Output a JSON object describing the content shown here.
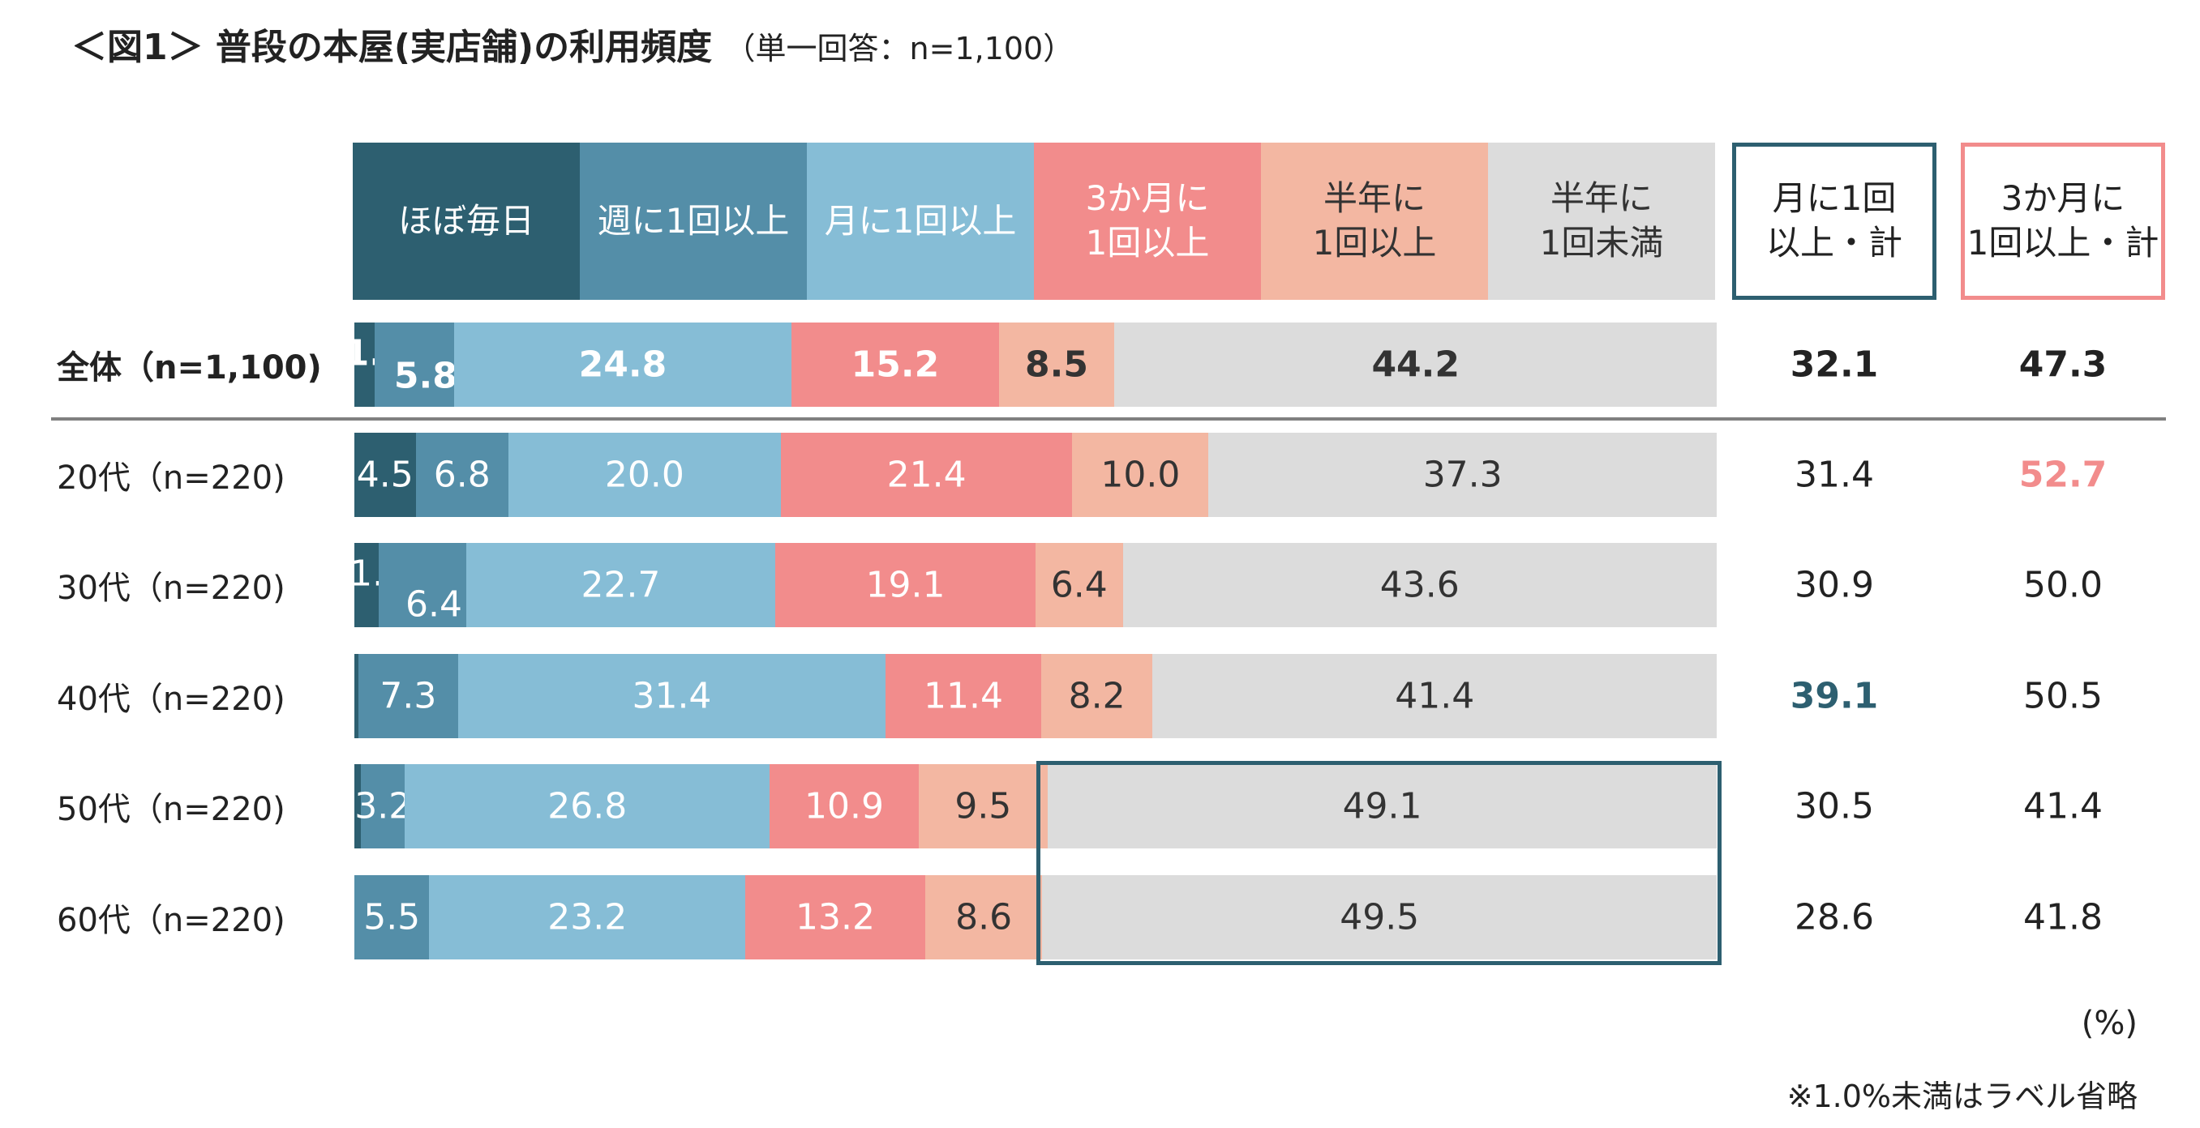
{
  "title": {
    "main": "＜図1＞ 普段の本屋(実店舗)の利用頻度",
    "sub": "（単一回答：n=1,100）"
  },
  "chart_data": {
    "type": "bar",
    "orientation": "horizontal-stacked-100",
    "categories": [
      "全体（n=1,100)",
      "20代（n=220)",
      "30代（n=220)",
      "40代（n=220)",
      "50代（n=220)",
      "60代（n=220)"
    ],
    "series": [
      {
        "name": "ほぼ毎日",
        "color": "#2d5f70",
        "values": [
          1.5,
          4.5,
          1.8,
          0.3,
          0.5,
          0
        ]
      },
      {
        "name": "週に1回以上",
        "color": "#548ea8",
        "values": [
          5.8,
          6.8,
          6.4,
          7.3,
          3.2,
          5.5
        ]
      },
      {
        "name": "月に1回以上",
        "color": "#86bdd6",
        "values": [
          24.8,
          20.0,
          22.7,
          31.4,
          26.8,
          23.2
        ]
      },
      {
        "name": "3か月に\n1回以上",
        "color": "#f28c8c",
        "values": [
          15.2,
          21.4,
          19.1,
          11.4,
          10.9,
          13.2
        ]
      },
      {
        "name": "半年に\n1回以上",
        "color": "#f3b7a2",
        "values": [
          8.5,
          10.0,
          6.4,
          8.2,
          9.5,
          8.6
        ]
      },
      {
        "name": "半年に\n1回未満",
        "color": "#dcdcdc",
        "values": [
          44.2,
          37.3,
          43.6,
          41.4,
          49.1,
          49.5
        ]
      }
    ],
    "totals": [
      {
        "name": "月に1回\n以上・計",
        "border": "#2d5f70",
        "highlight": "#2d5f70",
        "values": [
          "32.1",
          "31.4",
          "30.9",
          "39.1",
          "30.5",
          "28.6"
        ],
        "highlight_index": 3
      },
      {
        "name": "3か月に\n1回以上・計",
        "border": "#f28c8c",
        "highlight": "#f28c8c",
        "values": [
          "47.3",
          "52.7",
          "50.0",
          "50.5",
          "41.4",
          "41.8"
        ],
        "highlight_index": 1
      }
    ],
    "unit": "(%)",
    "note": "※1.0%未満はラベル省略"
  }
}
